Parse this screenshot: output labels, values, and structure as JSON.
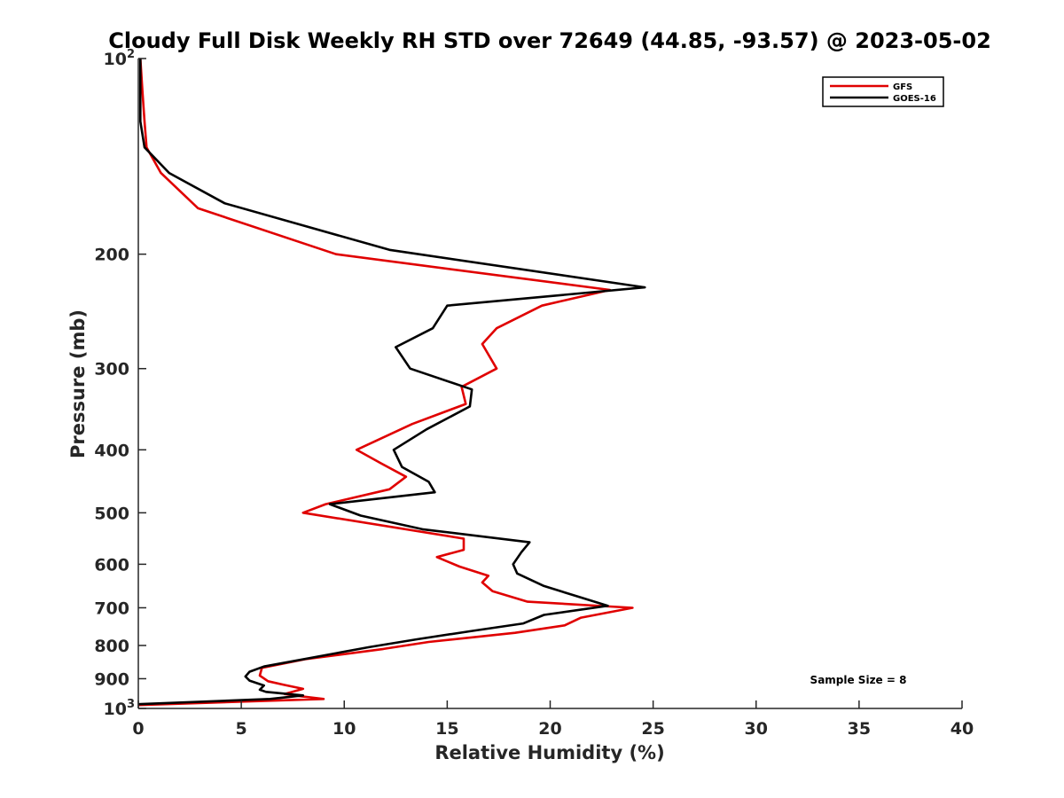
{
  "chart_data": {
    "type": "line",
    "title": "Cloudy Full Disk Weekly RH STD over 72649 (44.85, -93.57) @ 2023-05-02",
    "xlabel": "Relative Humidity (%)",
    "ylabel": "Pressure (mb)",
    "xlim": [
      0,
      40
    ],
    "ylim": [
      100,
      1000
    ],
    "y_scale": "log",
    "y_reversed": true,
    "x_ticks": [
      0,
      5,
      10,
      15,
      20,
      25,
      30,
      35,
      40
    ],
    "y_ticks": [
      {
        "value": 100,
        "base": "10",
        "exp": "2"
      },
      {
        "value": 200,
        "label": "200"
      },
      {
        "value": 300,
        "label": "300"
      },
      {
        "value": 400,
        "label": "400"
      },
      {
        "value": 500,
        "label": "500"
      },
      {
        "value": 600,
        "label": "600"
      },
      {
        "value": 700,
        "label": "700"
      },
      {
        "value": 800,
        "label": "800"
      },
      {
        "value": 900,
        "label": "900"
      },
      {
        "value": 1000,
        "base": "10",
        "exp": "3"
      }
    ],
    "grid": false,
    "legend_position": "top-right",
    "series": [
      {
        "name": "GFS",
        "color": "#e00000",
        "points": [
          [
            0.1,
            100
          ],
          [
            0.2,
            112
          ],
          [
            0.3,
            125
          ],
          [
            0.4,
            137
          ],
          [
            1.1,
            150
          ],
          [
            2.9,
            170
          ],
          [
            9.6,
            200
          ],
          [
            22.9,
            227
          ],
          [
            19.6,
            240
          ],
          [
            17.4,
            260
          ],
          [
            16.7,
            275
          ],
          [
            17.4,
            300
          ],
          [
            15.7,
            320
          ],
          [
            15.9,
            340
          ],
          [
            13.3,
            365
          ],
          [
            10.6,
            400
          ],
          [
            11.8,
            420
          ],
          [
            13.0,
            440
          ],
          [
            12.2,
            460
          ],
          [
            9.1,
            485
          ],
          [
            8.0,
            500
          ],
          [
            15.8,
            548
          ],
          [
            15.8,
            570
          ],
          [
            14.5,
            585
          ],
          [
            15.6,
            605
          ],
          [
            17.0,
            625
          ],
          [
            16.7,
            640
          ],
          [
            17.2,
            660
          ],
          [
            18.9,
            685
          ],
          [
            24.0,
            700
          ],
          [
            21.5,
            725
          ],
          [
            20.7,
            745
          ],
          [
            18.3,
            765
          ],
          [
            14.1,
            790
          ],
          [
            11.9,
            810
          ],
          [
            8.1,
            840
          ],
          [
            6.0,
            866
          ],
          [
            5.9,
            890
          ],
          [
            6.3,
            908
          ],
          [
            7.1,
            920
          ],
          [
            8.0,
            933
          ],
          [
            7.1,
            950
          ],
          [
            7.9,
            958
          ],
          [
            9.0,
            967
          ],
          [
            0.0,
            988
          ]
        ]
      },
      {
        "name": "GOES-16",
        "color": "#000000",
        "points": [
          [
            0.1,
            100
          ],
          [
            0.1,
            113
          ],
          [
            0.1,
            125
          ],
          [
            0.3,
            137
          ],
          [
            1.5,
            150
          ],
          [
            4.2,
            167
          ],
          [
            12.2,
            197
          ],
          [
            24.6,
            225
          ],
          [
            15.0,
            240
          ],
          [
            14.3,
            260
          ],
          [
            12.5,
            278
          ],
          [
            13.2,
            300
          ],
          [
            16.2,
            323
          ],
          [
            16.1,
            343
          ],
          [
            14.0,
            372
          ],
          [
            12.4,
            400
          ],
          [
            12.8,
            425
          ],
          [
            14.1,
            448
          ],
          [
            14.4,
            465
          ],
          [
            9.3,
            485
          ],
          [
            10.8,
            505
          ],
          [
            13.8,
            530
          ],
          [
            19.0,
            555
          ],
          [
            18.6,
            575
          ],
          [
            18.2,
            600
          ],
          [
            18.4,
            620
          ],
          [
            19.7,
            648
          ],
          [
            21.5,
            675
          ],
          [
            22.8,
            695
          ],
          [
            19.7,
            718
          ],
          [
            18.7,
            740
          ],
          [
            16.2,
            760
          ],
          [
            13.5,
            783
          ],
          [
            11.2,
            805
          ],
          [
            6.1,
            862
          ],
          [
            5.4,
            878
          ],
          [
            5.2,
            893
          ],
          [
            5.4,
            906
          ],
          [
            6.1,
            922
          ],
          [
            5.9,
            936
          ],
          [
            6.2,
            943
          ],
          [
            8.0,
            955
          ],
          [
            6.4,
            967
          ],
          [
            0.0,
            985
          ]
        ]
      }
    ],
    "annotations": [
      {
        "text": "Sample Size = 8"
      }
    ]
  }
}
